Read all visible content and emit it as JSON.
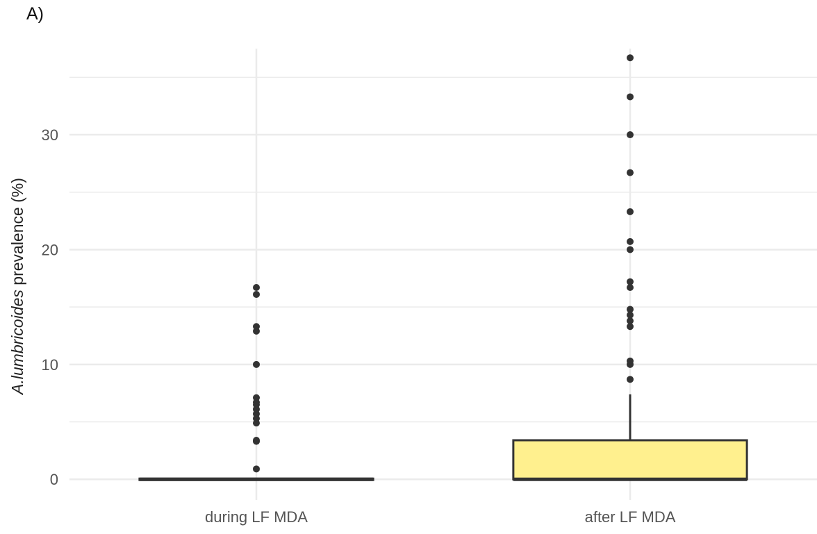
{
  "panel_label": "A)",
  "colors": {
    "grid": "#ebebeb",
    "box_fill": "#fff08e",
    "box_stroke": "#333333",
    "point": "#333333"
  },
  "chart_data": {
    "type": "box",
    "categories": [
      "during LF MDA",
      "after LF MDA"
    ],
    "ylabel_italic": "A.lumbricoides",
    "ylabel_rest": " prevalence (%)",
    "ylim": [
      -1.8,
      37.5
    ],
    "yticks": [
      0,
      10,
      20,
      30
    ],
    "grid": true,
    "boxes": [
      {
        "category": "during LF MDA",
        "q1": 0,
        "median": 0,
        "q3": 0,
        "whisker_low": 0,
        "whisker_high": 0,
        "fill": "#333333",
        "outliers": [
          0.9,
          3.3,
          3.4,
          4.9,
          5.3,
          5.7,
          6.1,
          6.5,
          6.7,
          7.1,
          10.0,
          12.9,
          13.3,
          16.1,
          16.7
        ]
      },
      {
        "category": "after LF MDA",
        "q1": 0,
        "median": 0,
        "q3": 3.4,
        "whisker_low": 0,
        "whisker_high": 7.4,
        "fill": "#fff08e",
        "outliers": [
          8.7,
          10.0,
          10.3,
          13.3,
          13.8,
          14.3,
          14.8,
          16.7,
          17.2,
          20.0,
          20.7,
          23.3,
          26.7,
          30.0,
          33.3,
          36.7
        ]
      }
    ]
  }
}
